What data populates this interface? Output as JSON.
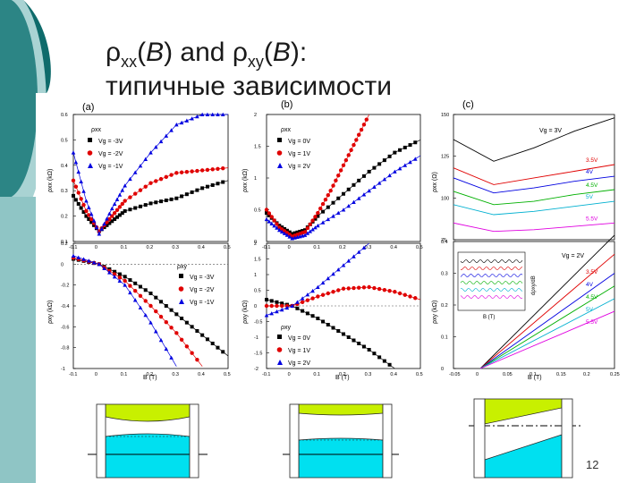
{
  "slide": {
    "title_line1_rho": "ρ",
    "title_line1_sub1": "xx",
    "title_line1_B1": "B",
    "title_line1_mid": ") and ",
    "title_line1_rho2": "ρ",
    "title_line1_sub2": "xy",
    "title_line1_B2": "B",
    "title_line1_end": "):",
    "title_line2": "типичные зависимости",
    "page_number": "12"
  },
  "panels": {
    "a": {
      "label": "(a)",
      "top_ylabel": "ρxx (kΩ)",
      "bottom_ylabel": "ρxy (kΩ)",
      "xlabel": "B (T)",
      "top_legend_title": "ρxx",
      "bottom_legend_title": "ρxy",
      "legend": [
        "Vg = -3V",
        "Vg = -2V",
        "Vg = -1V"
      ]
    },
    "b": {
      "label": "(b)",
      "top_ylabel": "ρxx (kΩ)",
      "bottom_ylabel": "ρxy (kΩ)",
      "xlabel": "B (T)",
      "top_legend_title": "ρxx",
      "bottom_legend_title": "ρxy",
      "legend": [
        "Vg = 0V",
        "Vg = 1V",
        "Vg = 2V"
      ]
    },
    "c": {
      "label": "(c)",
      "top_ylabel": "ρxx (Ω)",
      "bottom_ylabel": "ρxy (kΩ)",
      "xlabel": "B (T)",
      "top_first": "Vg = 3V",
      "bottom_first": "Vg = 2V",
      "inset_label": "dρxy/dB",
      "inset_xlabel": "B (T)"
    }
  },
  "chart_data": [
    {
      "type": "line",
      "title": "(a)",
      "xlabel": "B (T)",
      "ylabel": "ρxx (kΩ)",
      "x_ticks": [
        -0.1,
        0.0,
        0.1,
        0.2,
        0.3,
        0.4,
        0.5
      ],
      "y_ticks": [
        0.1,
        0.2,
        0.3,
        0.4,
        0.5,
        0.6
      ],
      "xlim": [
        -0.1,
        0.5
      ],
      "ylim": [
        0.1,
        0.6
      ],
      "series": [
        {
          "name": "Vg = -3V",
          "color": "#000000",
          "marker": "square",
          "x": [
            -0.1,
            -0.05,
            0.0,
            0.05,
            0.1,
            0.2,
            0.3,
            0.4,
            0.5
          ],
          "y": [
            0.28,
            0.2,
            0.14,
            0.18,
            0.22,
            0.25,
            0.27,
            0.31,
            0.34
          ]
        },
        {
          "name": "Vg = -2V",
          "color": "#e00000",
          "marker": "circle",
          "x": [
            -0.1,
            -0.05,
            0.0,
            0.05,
            0.1,
            0.2,
            0.3,
            0.4,
            0.5
          ],
          "y": [
            0.34,
            0.22,
            0.14,
            0.2,
            0.26,
            0.33,
            0.37,
            0.38,
            0.39
          ]
        },
        {
          "name": "Vg = -1V",
          "color": "#0000e0",
          "marker": "triangle",
          "x": [
            -0.1,
            -0.05,
            0.0,
            0.05,
            0.1,
            0.2,
            0.3,
            0.4,
            0.5
          ],
          "y": [
            0.45,
            0.26,
            0.13,
            0.23,
            0.32,
            0.45,
            0.56,
            0.6,
            0.6
          ]
        }
      ]
    },
    {
      "type": "line",
      "title": "(a)",
      "xlabel": "B (T)",
      "ylabel": "ρxy (kΩ)",
      "x_ticks": [
        -0.1,
        0.0,
        0.1,
        0.2,
        0.3,
        0.4,
        0.5
      ],
      "y_ticks": [
        0.2,
        0.0,
        -0.2,
        -0.4,
        -0.6,
        -0.8,
        -1.0
      ],
      "xlim": [
        -0.1,
        0.5
      ],
      "ylim": [
        -1.0,
        0.2
      ],
      "series": [
        {
          "name": "Vg = -3V",
          "color": "#000000",
          "marker": "square",
          "x": [
            -0.1,
            0.0,
            0.1,
            0.2,
            0.3,
            0.4,
            0.5
          ],
          "y": [
            0.05,
            0.0,
            -0.12,
            -0.28,
            -0.48,
            -0.68,
            -0.88
          ]
        },
        {
          "name": "Vg = -2V",
          "color": "#e00000",
          "marker": "circle",
          "x": [
            -0.1,
            0.0,
            0.1,
            0.2,
            0.3,
            0.4
          ],
          "y": [
            0.06,
            0.0,
            -0.16,
            -0.4,
            -0.66,
            -0.98
          ]
        },
        {
          "name": "Vg = -1V",
          "color": "#0000e0",
          "marker": "triangle",
          "x": [
            -0.1,
            0.0,
            0.1,
            0.2,
            0.3
          ],
          "y": [
            0.08,
            0.0,
            -0.2,
            -0.56,
            -0.98
          ]
        }
      ]
    },
    {
      "type": "line",
      "title": "(b)",
      "xlabel": "B (T)",
      "ylabel": "ρxx (kΩ)",
      "x_ticks": [
        -0.1,
        0.0,
        0.1,
        0.2,
        0.3,
        0.4,
        0.5
      ],
      "y_ticks": [
        0.0,
        0.5,
        1.0,
        1.5,
        2.0
      ],
      "xlim": [
        -0.1,
        0.5
      ],
      "ylim": [
        0.0,
        2.0
      ],
      "series": [
        {
          "name": "Vg = 0V",
          "color": "#000000",
          "marker": "square",
          "x": [
            -0.1,
            -0.05,
            0.0,
            0.05,
            0.1,
            0.2,
            0.3,
            0.4,
            0.5
          ],
          "y": [
            0.45,
            0.25,
            0.12,
            0.18,
            0.4,
            0.75,
            1.1,
            1.4,
            1.6
          ]
        },
        {
          "name": "Vg = 1V",
          "color": "#e00000",
          "marker": "circle",
          "x": [
            -0.1,
            -0.05,
            0.0,
            0.05,
            0.1,
            0.15,
            0.2,
            0.25,
            0.3
          ],
          "y": [
            0.5,
            0.22,
            0.08,
            0.15,
            0.45,
            0.8,
            1.2,
            1.6,
            2.0
          ]
        },
        {
          "name": "Vg = 2V",
          "color": "#0000e0",
          "marker": "triangle",
          "x": [
            -0.1,
            -0.05,
            0.0,
            0.05,
            0.1,
            0.2,
            0.3,
            0.4,
            0.5
          ],
          "y": [
            0.35,
            0.18,
            0.05,
            0.1,
            0.25,
            0.5,
            0.8,
            1.1,
            1.35
          ]
        }
      ]
    },
    {
      "type": "line",
      "title": "(b)",
      "xlabel": "B (T)",
      "ylabel": "ρxy (kΩ)",
      "x_ticks": [
        -0.1,
        0.0,
        0.1,
        0.2,
        0.3,
        0.4,
        0.5
      ],
      "y_ticks": [
        2.0,
        1.5,
        1.0,
        0.5,
        0.0,
        -0.5,
        -1.0,
        -1.5,
        -2.0
      ],
      "xlim": [
        -0.1,
        0.5
      ],
      "ylim": [
        -2.0,
        2.0
      ],
      "series": [
        {
          "name": "Vg = 0V",
          "color": "#000000",
          "marker": "square",
          "x": [
            -0.1,
            0.0,
            0.1,
            0.2,
            0.3,
            0.4
          ],
          "y": [
            0.2,
            0.0,
            -0.4,
            -0.9,
            -1.4,
            -2.0
          ]
        },
        {
          "name": "Vg = 1V",
          "color": "#e00000",
          "marker": "circle",
          "x": [
            -0.1,
            0.0,
            0.1,
            0.2,
            0.3,
            0.4,
            0.5
          ],
          "y": [
            0.0,
            0.0,
            0.3,
            0.55,
            0.6,
            0.45,
            0.2
          ]
        },
        {
          "name": "Vg = 2V",
          "color": "#0000e0",
          "marker": "triangle",
          "x": [
            -0.1,
            0.0,
            0.1,
            0.2,
            0.3
          ],
          "y": [
            -0.3,
            0.0,
            0.6,
            1.3,
            2.0
          ]
        }
      ]
    },
    {
      "type": "line",
      "title": "(c)",
      "xlabel": "B (T)",
      "ylabel": "ρxx (Ω)",
      "y_ticks": [
        75,
        100,
        125,
        150
      ],
      "ylim": [
        75,
        150
      ],
      "series": [
        {
          "name": "Vg = 3V",
          "color": "#000000",
          "x": [
            -0.1,
            0.0,
            0.1,
            0.2,
            0.3
          ],
          "y": [
            135,
            122,
            130,
            140,
            148
          ]
        },
        {
          "name": "3.5V",
          "color": "#e00000",
          "x": [
            -0.1,
            0.0,
            0.1,
            0.2,
            0.3
          ],
          "y": [
            118,
            108,
            112,
            116,
            120
          ]
        },
        {
          "name": "4V",
          "color": "#0000e0",
          "x": [
            -0.1,
            0.0,
            0.1,
            0.2,
            0.3
          ],
          "y": [
            112,
            103,
            106,
            110,
            113
          ]
        },
        {
          "name": "4.5V",
          "color": "#00b000",
          "x": [
            -0.1,
            0.0,
            0.1,
            0.2,
            0.3
          ],
          "y": [
            104,
            96,
            98,
            102,
            105
          ]
        },
        {
          "name": "5V",
          "color": "#00b0d0",
          "x": [
            -0.1,
            0.0,
            0.1,
            0.2,
            0.3
          ],
          "y": [
            96,
            90,
            92,
            95,
            98
          ]
        },
        {
          "name": "5.5V",
          "color": "#e000e0",
          "x": [
            -0.1,
            0.0,
            0.1,
            0.2,
            0.3
          ],
          "y": [
            85,
            80,
            81,
            83,
            85
          ]
        }
      ]
    },
    {
      "type": "line",
      "title": "(c)",
      "xlabel": "B (T)",
      "ylabel": "ρxy (kΩ)",
      "x_ticks": [
        -0.05,
        0.0,
        0.05,
        0.1,
        0.15,
        0.2,
        0.25
      ],
      "y_ticks": [
        0.0,
        0.1,
        0.2,
        0.3,
        0.4
      ],
      "xlim": [
        -0.05,
        0.25
      ],
      "ylim": [
        0.0,
        0.4
      ],
      "series": [
        {
          "name": "Vg = 2V",
          "color": "#000000",
          "x": [
            0.0,
            0.25
          ],
          "y": [
            0.0,
            0.42
          ]
        },
        {
          "name": "3.5V",
          "color": "#e00000",
          "x": [
            0.0,
            0.25
          ],
          "y": [
            0.0,
            0.36
          ]
        },
        {
          "name": "4V",
          "color": "#0000e0",
          "x": [
            0.0,
            0.25
          ],
          "y": [
            0.0,
            0.3
          ]
        },
        {
          "name": "4.5V",
          "color": "#00b000",
          "x": [
            0.0,
            0.25
          ],
          "y": [
            0.0,
            0.26
          ]
        },
        {
          "name": "5V",
          "color": "#00b0d0",
          "x": [
            0.0,
            0.25
          ],
          "y": [
            0.0,
            0.22
          ]
        },
        {
          "name": "5.5V",
          "color": "#e000e0",
          "x": [
            0.0,
            0.25
          ],
          "y": [
            0.0,
            0.18
          ]
        }
      ]
    }
  ]
}
